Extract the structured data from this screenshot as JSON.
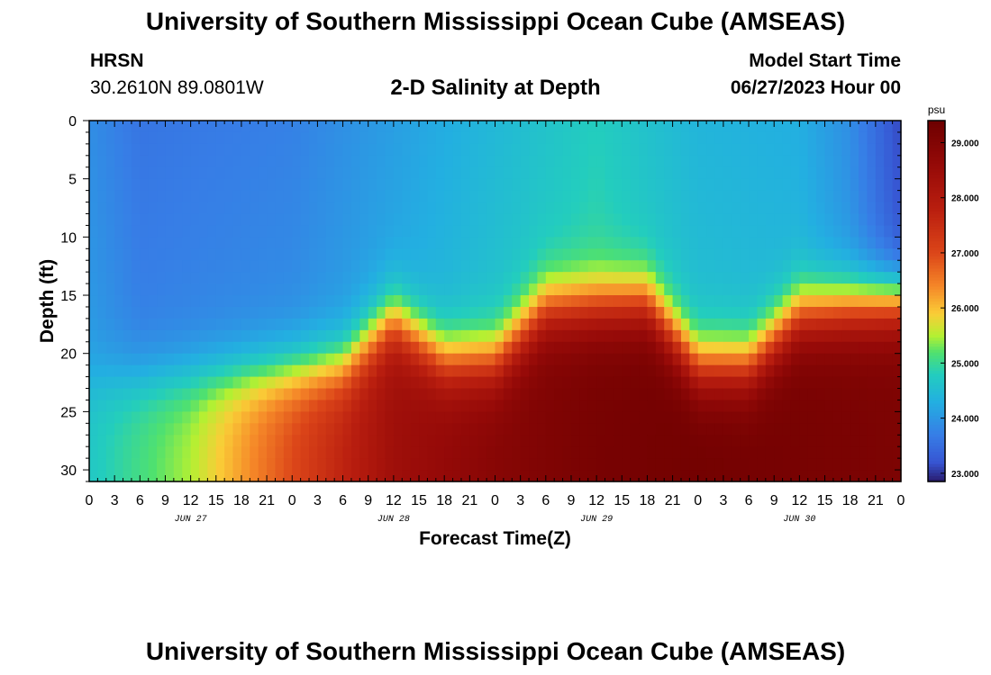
{
  "page": {
    "title": "University of Southern Mississippi Ocean Cube (AMSEAS)",
    "bottom_title": "University of Southern Mississippi Ocean Cube (AMSEAS)"
  },
  "header": {
    "station": "HRSN",
    "coords": "30.2610N  89.0801W",
    "subtitle": "2-D Salinity at Depth",
    "start_label": "Model Start Time",
    "start_value": "06/27/2023 Hour 00"
  },
  "chart_data": {
    "type": "heatmap",
    "title": "2-D Salinity at Depth",
    "xlabel": "Forecast Time(Z)",
    "ylabel": "Depth (ft)",
    "x_hours_range": [
      0,
      96
    ],
    "ylim": [
      0,
      31
    ],
    "x_tick_labels": [
      "0",
      "3",
      "6",
      "9",
      "12",
      "15",
      "18",
      "21",
      "0",
      "3",
      "6",
      "9",
      "12",
      "15",
      "18",
      "21",
      "0",
      "3",
      "6",
      "9",
      "12",
      "15",
      "18",
      "21",
      "0",
      "3",
      "6",
      "9",
      "12",
      "15",
      "18",
      "21",
      "0"
    ],
    "date_labels": [
      {
        "text": "JUN 27",
        "hour": 12
      },
      {
        "text": "JUN 28",
        "hour": 36
      },
      {
        "text": "JUN 29",
        "hour": 60
      },
      {
        "text": "JUN 30",
        "hour": 84
      }
    ],
    "y_ticks": [
      0,
      5,
      10,
      15,
      20,
      25,
      30
    ],
    "colorbar": {
      "unit": "psu",
      "min": 22.85,
      "max": 29.4,
      "ticks": [
        "23.000",
        "24.000",
        "25.000",
        "26.000",
        "27.000",
        "28.000",
        "29.000"
      ],
      "tick_values": [
        23,
        24,
        25,
        26,
        27,
        28,
        29
      ]
    },
    "halocline_depth_ft": [
      {
        "hour": 0,
        "depth": 22.5
      },
      {
        "hour": 12,
        "depth": 22
      },
      {
        "hour": 24,
        "depth": 21.5
      },
      {
        "hour": 30,
        "depth": 21
      },
      {
        "hour": 36,
        "depth": 17
      },
      {
        "hour": 42,
        "depth": 20.5
      },
      {
        "hour": 48,
        "depth": 20.5
      },
      {
        "hour": 54,
        "depth": 16
      },
      {
        "hour": 66,
        "depth": 15.5
      },
      {
        "hour": 72,
        "depth": 21
      },
      {
        "hour": 78,
        "depth": 21
      },
      {
        "hour": 84,
        "depth": 16.5
      },
      {
        "hour": 96,
        "depth": 15.5
      }
    ],
    "surface_salinity_psu": [
      {
        "hour": 0,
        "value": 23.9
      },
      {
        "hour": 6,
        "value": 23.6
      },
      {
        "hour": 24,
        "value": 23.75
      },
      {
        "hour": 36,
        "value": 24.1
      },
      {
        "hour": 48,
        "value": 24.45
      },
      {
        "hour": 60,
        "value": 24.8
      },
      {
        "hour": 72,
        "value": 24.4
      },
      {
        "hour": 84,
        "value": 24.3
      },
      {
        "hour": 90,
        "value": 23.9
      },
      {
        "hour": 96,
        "value": 23.1
      }
    ],
    "bottom_salinity_psu": [
      {
        "hour": 0,
        "value": 24.7
      },
      {
        "hour": 12,
        "value": 25.5
      },
      {
        "hour": 24,
        "value": 27.0
      },
      {
        "hour": 36,
        "value": 28.4
      },
      {
        "hour": 48,
        "value": 28.9
      },
      {
        "hour": 60,
        "value": 29.2
      },
      {
        "hour": 72,
        "value": 29.3
      },
      {
        "hour": 84,
        "value": 29.2
      },
      {
        "hour": 96,
        "value": 29.1
      }
    ]
  }
}
